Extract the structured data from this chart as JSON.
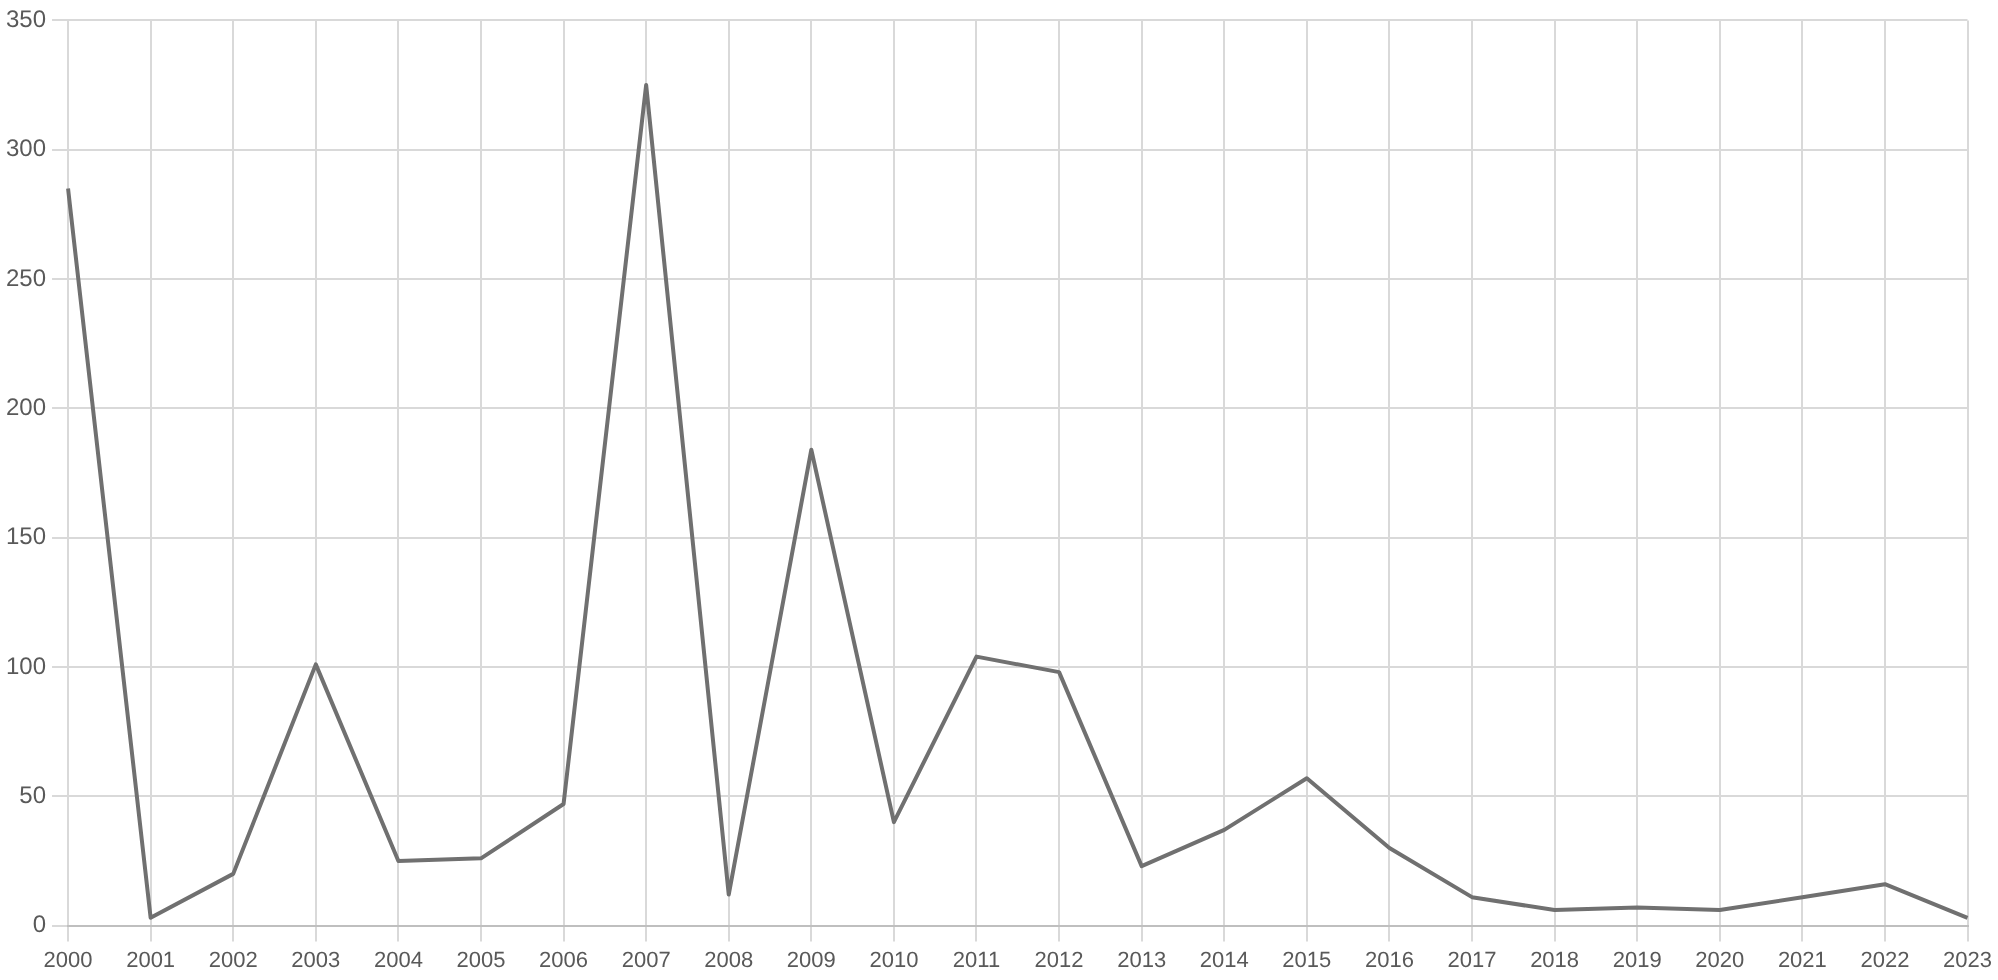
{
  "chart_data": {
    "type": "line",
    "categories": [
      "2000",
      "2001",
      "2002",
      "2003",
      "2004",
      "2005",
      "2006",
      "2007",
      "2008",
      "2009",
      "2010",
      "2011",
      "2012",
      "2013",
      "2014",
      "2015",
      "2016",
      "2017",
      "2018",
      "2019",
      "2020",
      "2021",
      "2022",
      "2023"
    ],
    "series": [
      {
        "color": "#707070",
        "values": [
          285,
          3,
          20,
          101,
          25,
          26,
          47,
          325,
          12,
          184,
          40,
          104,
          98,
          23,
          37,
          57,
          30,
          11,
          6,
          7,
          6,
          11,
          16,
          3
        ]
      }
    ],
    "ylim": [
      0,
      350
    ],
    "yticks": [
      0,
      50,
      100,
      150,
      200,
      250,
      300,
      350
    ],
    "grid": true,
    "legend": false,
    "marker": "none",
    "line_style": "solid"
  }
}
